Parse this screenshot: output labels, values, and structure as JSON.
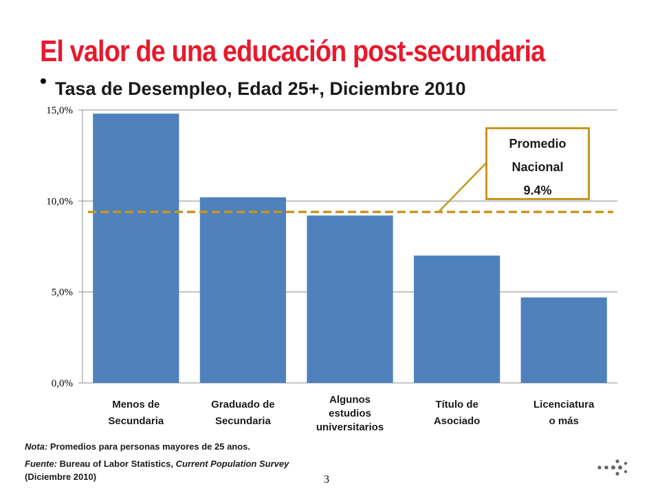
{
  "title": "El valor de una educación post-secundaria",
  "subtitle": "Tasa de Desempleo, Edad 25+, Diciembre 2010",
  "colors": {
    "title": "#e8192c",
    "bar": "#4f81bd",
    "average_line": "#c8961e",
    "grid": "#8c8c8c"
  },
  "chart_data": {
    "type": "bar",
    "categories": [
      "Menos de Secundaria",
      "Graduado de Secundaria",
      "Algunos estudios universitarios",
      "Título de Asociado",
      "Licenciatura o más"
    ],
    "category_lines": [
      [
        "Menos de",
        "Secundaria"
      ],
      [
        "Graduado de",
        "Secundaria"
      ],
      [
        "Algunos",
        "estudios",
        "universitarios"
      ],
      [
        "Título de",
        "Asociado"
      ],
      [
        "Licenciatura",
        "o más"
      ]
    ],
    "values": [
      14.8,
      10.2,
      9.2,
      7.0,
      4.7
    ],
    "ylim": [
      0,
      15
    ],
    "yticks": [
      0,
      5,
      10,
      15
    ],
    "ytick_labels": [
      "0,0%",
      "5,0%",
      "10,0%",
      "15,0%"
    ],
    "grid": true,
    "reference_line": {
      "value": 9.4,
      "style": "dashed"
    },
    "annotation": {
      "lines": [
        "Promedio",
        "Nacional",
        "9.4%"
      ]
    }
  },
  "notes": {
    "nota_label": "Nota:",
    "nota_text": "Promedios para  personas mayores de 25 anos.",
    "fuente_label": "Fuente:",
    "fuente_text": "Bureau of Labor Statistics,",
    "fuente_survey": "Current Population Survey",
    "fuente_date": "(Diciembre 2010)"
  },
  "page_number": "3"
}
